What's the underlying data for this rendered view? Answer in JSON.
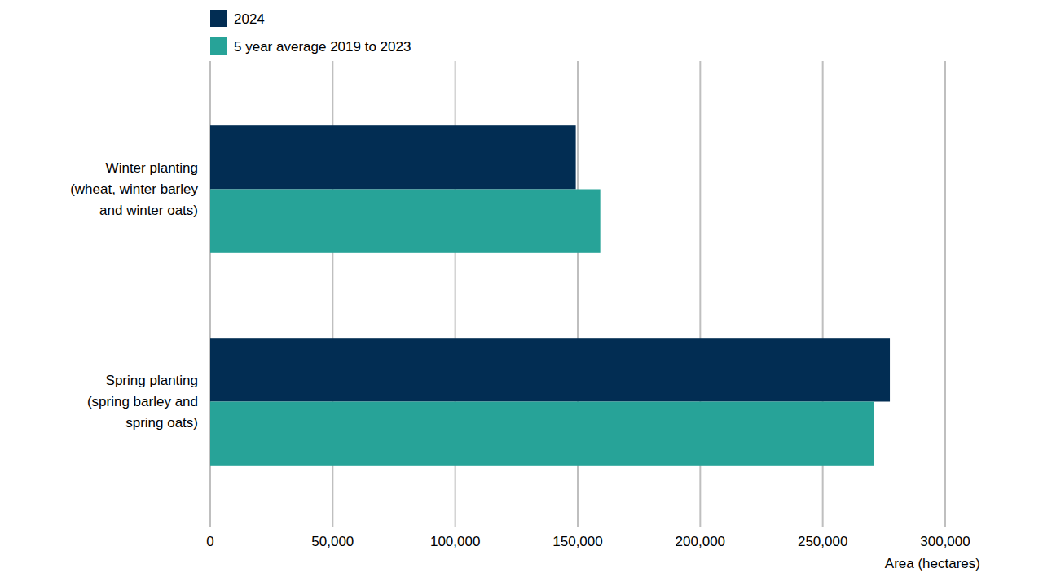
{
  "chart_data": {
    "type": "bar",
    "orientation": "horizontal",
    "categories": [
      "Winter planting (wheat, winter barley and winter oats)",
      "Spring planting (spring barley and spring oats)"
    ],
    "series": [
      {
        "name": "2024",
        "color": "#022d53",
        "values": [
          149200,
          277400
        ]
      },
      {
        "name": "5 year average 2019 to 2023",
        "color": "#27a398",
        "values": [
          159200,
          270800
        ]
      }
    ],
    "xlabel": "Area (hectares)",
    "xlim": [
      0,
      300000
    ],
    "xticks": [
      0,
      {
        "value": 50000,
        "label": "50,000"
      },
      {
        "value": 100000,
        "label": "100,000"
      },
      {
        "value": 150000,
        "label": "150,000"
      },
      {
        "value": 200000,
        "label": "200,000"
      },
      {
        "value": 250000,
        "label": "250,000"
      },
      {
        "value": 300000,
        "label": "300,000"
      }
    ],
    "grid": true,
    "legend": "top-left"
  }
}
